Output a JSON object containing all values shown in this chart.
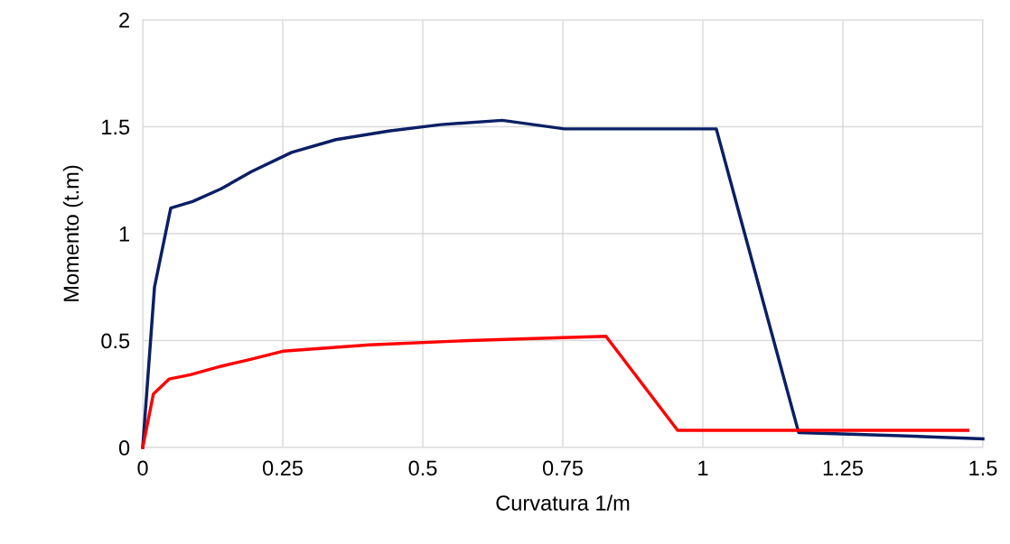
{
  "chart_data": {
    "type": "line",
    "xlabel": "Curvatura 1/m",
    "ylabel": "Momento (t.m)",
    "xlim": [
      0,
      1.5
    ],
    "xticks": [
      0,
      0.25,
      0.5,
      0.75,
      1,
      1.25,
      1.5
    ],
    "ylim": [
      0,
      2
    ],
    "yticks": [
      0,
      0.5,
      1,
      1.5,
      2
    ],
    "grid": true,
    "legend": false,
    "marker": "none",
    "line_style": "solid",
    "series": [
      {
        "color": "#0b1f65",
        "x": [
          0,
          0.021,
          0.05,
          0.089,
          0.14,
          0.194,
          0.266,
          0.345,
          0.439,
          0.532,
          0.642,
          0.753,
          0.884,
          1.024,
          1.171,
          1.353,
          1.5
        ],
        "values": [
          0,
          0.75,
          1.12,
          1.15,
          1.21,
          1.29,
          1.38,
          1.44,
          1.48,
          1.51,
          1.53,
          1.49,
          1.49,
          1.49,
          0.07,
          0.055,
          0.04
        ]
      },
      {
        "color": "#ff0000",
        "x": [
          0,
          0.019,
          0.047,
          0.085,
          0.14,
          0.189,
          0.25,
          0.405,
          0.582,
          0.827,
          0.955,
          1.473
        ],
        "values": [
          0,
          0.25,
          0.32,
          0.34,
          0.38,
          0.41,
          0.45,
          0.48,
          0.5,
          0.52,
          0.08,
          0.08
        ]
      }
    ]
  }
}
